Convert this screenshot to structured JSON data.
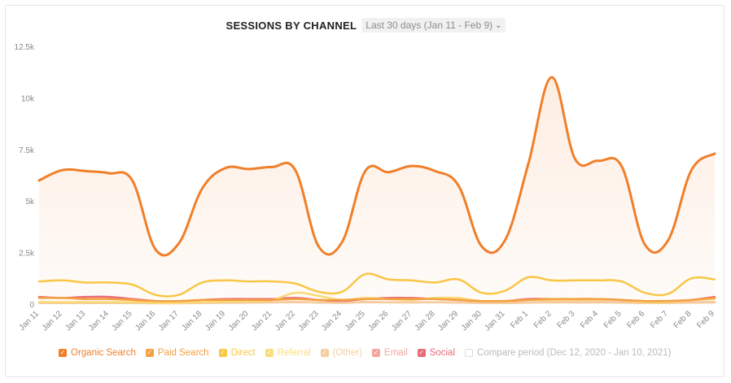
{
  "header": {
    "title": "SESSIONS BY CHANNEL",
    "period": "Last 30 days (Jan 11 - Feb 9)"
  },
  "chart_data": {
    "type": "line",
    "title": "SESSIONS BY CHANNEL",
    "ylim": [
      0,
      12500
    ],
    "yticks": [
      0,
      2500,
      5000,
      7500,
      10000,
      12500
    ],
    "ytick_labels": [
      "0",
      "2.5k",
      "5k",
      "7.5k",
      "10k",
      "12.5k"
    ],
    "categories": [
      "Jan 11",
      "Jan 12",
      "Jan 13",
      "Jan 14",
      "Jan 15",
      "Jan 16",
      "Jan 17",
      "Jan 18",
      "Jan 19",
      "Jan 20",
      "Jan 21",
      "Jan 22",
      "Jan 23",
      "Jan 24",
      "Jan 25",
      "Jan 26",
      "Jan 27",
      "Jan 28",
      "Jan 29",
      "Jan 30",
      "Jan 31",
      "Feb 1",
      "Feb 2",
      "Feb 3",
      "Feb 4",
      "Feb 5",
      "Feb 6",
      "Feb 7",
      "Feb 8",
      "Feb 9"
    ],
    "series": [
      {
        "name": "Organic Search",
        "color": "#f07f2a",
        "area": true,
        "values": [
          6000,
          6500,
          6450,
          6350,
          6000,
          2650,
          2950,
          5600,
          6600,
          6550,
          6650,
          6500,
          2800,
          3000,
          6450,
          6400,
          6700,
          6450,
          5750,
          2800,
          3100,
          6800,
          11000,
          7050,
          6950,
          6700,
          2900,
          3100,
          6500,
          7300
        ]
      },
      {
        "name": "Paid Search",
        "color": "#f5a142",
        "area": false,
        "values": [
          300,
          300,
          250,
          250,
          200,
          150,
          150,
          200,
          200,
          200,
          200,
          250,
          200,
          200,
          250,
          250,
          250,
          250,
          200,
          150,
          150,
          200,
          250,
          250,
          250,
          200,
          150,
          150,
          200,
          300
        ]
      },
      {
        "name": "Direct",
        "color": "#f9c846",
        "area": false,
        "values": [
          1100,
          1150,
          1050,
          1050,
          950,
          450,
          450,
          1050,
          1150,
          1100,
          1100,
          1000,
          600,
          600,
          1450,
          1200,
          1150,
          1050,
          1200,
          550,
          650,
          1300,
          1150,
          1150,
          1150,
          1100,
          550,
          500,
          1250,
          1200
        ]
      },
      {
        "name": "Referral",
        "color": "#f9dd7a",
        "area": false,
        "values": [
          100,
          100,
          100,
          100,
          100,
          60,
          60,
          100,
          120,
          150,
          200,
          550,
          400,
          200,
          300,
          250,
          200,
          300,
          300,
          150,
          150,
          200,
          200,
          200,
          200,
          200,
          100,
          100,
          200,
          250
        ]
      },
      {
        "name": "(Other)",
        "color": "#f5cfa0",
        "area": false,
        "values": [
          50,
          50,
          50,
          50,
          50,
          40,
          40,
          50,
          60,
          70,
          80,
          100,
          80,
          60,
          100,
          90,
          80,
          90,
          80,
          50,
          50,
          70,
          80,
          80,
          80,
          70,
          50,
          50,
          70,
          80
        ]
      },
      {
        "name": "Email",
        "color": "#f2a79a",
        "area": false,
        "values": [
          80,
          80,
          70,
          70,
          60,
          50,
          50,
          70,
          80,
          80,
          90,
          100,
          80,
          70,
          100,
          90,
          90,
          90,
          80,
          60,
          60,
          80,
          100,
          100,
          100,
          90,
          60,
          60,
          90,
          100
        ]
      },
      {
        "name": "Social",
        "color": "#e96a78",
        "area": false,
        "values": [
          350,
          300,
          350,
          350,
          250,
          150,
          100,
          200,
          250,
          250,
          250,
          300,
          200,
          150,
          250,
          300,
          300,
          250,
          200,
          150,
          150,
          250,
          250,
          250,
          250,
          200,
          150,
          150,
          200,
          350
        ]
      }
    ]
  },
  "legend": [
    {
      "label": "Organic Search",
      "color": "#f07f2a",
      "checked": true
    },
    {
      "label": "Paid Search",
      "color": "#f5a142",
      "checked": true
    },
    {
      "label": "Direct",
      "color": "#f9c846",
      "checked": true
    },
    {
      "label": "Referral",
      "color": "#f9dd7a",
      "checked": true
    },
    {
      "label": "(Other)",
      "color": "#f5cfa0",
      "checked": true
    },
    {
      "label": "Email",
      "color": "#f2a79a",
      "checked": true
    },
    {
      "label": "Social",
      "color": "#e96a78",
      "checked": true
    },
    {
      "label": "Compare period (Dec 12, 2020 - Jan 10, 2021)",
      "color": "#cccccc",
      "checked": false
    }
  ]
}
